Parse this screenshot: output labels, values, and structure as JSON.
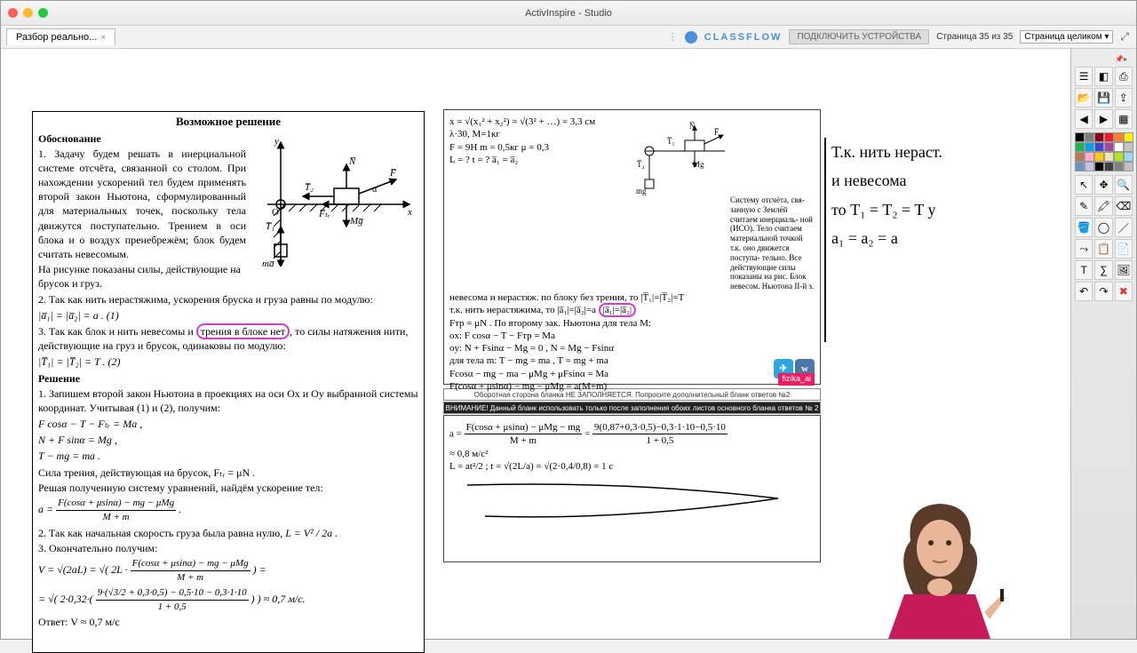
{
  "app": {
    "title": "ActivInspire - Studio"
  },
  "tab": {
    "label": "Разбор реально...",
    "close": "×"
  },
  "header": {
    "classflow": "CLASSFLOW",
    "connect_btn": "ПОДКЛЮЧИТЬ УСТРОЙСТВА",
    "page_info": "Страница 35 из 35",
    "zoom": "Страница целиком",
    "expand": "⤢"
  },
  "check_mark": "✔",
  "solution": {
    "title": "Возможное решение",
    "h_just": "Обоснование",
    "p1": "1. Задачу будем решать в инерциальной системе отсчёта, связанной со столом. При нахождении ускорений тел будем применять второй закон Ньютона, сформулированный для материальных точек, поскольку тела движутся поступательно. Трением в оси блока и о воздух пренебрежём; блок будем считать невесомым.",
    "p2": "На рисунке показаны силы, действующие на брусок и груз.",
    "p3a": "2. Так как нить нерастяжима, ускорения бруска и груза равны по модулю:",
    "eq1": "|a̅₁| = |a̅₂| = a .                            (1)",
    "p4a": "3. Так как блок и нить невесомы и ",
    "p4_circ": "трения в блоке нет",
    "p4b": ", то силы натяжения нити, действующие на груз и брусок, одинаковы по модулю:",
    "eq2": "|T̅₁| = |T̅₂| = T .                            (2)",
    "h_sol": "Решение",
    "s1": "1. Запишем второй закон Ньютона в проекциях на оси Ox и Oy выбранной системы координат. Учитывая (1) и (2), получим:",
    "seq1": "F cosα − T − Fₜᵣ = Ma ,",
    "seq2": "N + F sinα = Mg ,",
    "seq3": "T − mg = ma .",
    "s2": "Сила трения, действующая на брусок,  Fₜᵣ = μN .",
    "s3": "Решая полученную систему уравнений, найдём ускорение тел:",
    "seq4_num": "F(cosα + μsinα) − mg − μMg",
    "seq4_den": "M + m",
    "s4": "2. Так как начальная скорость груза была равна нулю, ",
    "seq5": "L = V² / 2a .",
    "s5": "3. Окончательно получим:",
    "seq6a": "V = √(2aL) = √( 2L · ",
    "seq6_num": "F(cosα + μsinα) − mg − μMg",
    "seq6_den": "M + m",
    "seq6b": " ) =",
    "seq7_num": "9·(√3/2 + 0,3·0,5) − 0,5·10 − 0,3·1·10",
    "seq7_den": "1 + 0,5",
    "seq7a": "= √( 2·0,32·( ",
    "seq7b": " ) ) ≈ 0,7 м/с.",
    "ans": "Ответ:  V ≈ 0,7 м/с"
  },
  "diagram": {
    "labels": {
      "y": "y",
      "x": "x",
      "O": "O",
      "N": "N̅",
      "F": "F̅",
      "T1": "T̅₁",
      "T2": "T̅₂",
      "Ftr": "F̅ₜᵣ",
      "Mg": "Mg̅",
      "mg": "mg̅",
      "alpha": "α"
    }
  },
  "hand_top": {
    "l1": "x = √(x₁² + x₂²) = √(3² + …) = 3,3 см",
    "l2": "λ·30, M=1кг",
    "l3": "F = 9H   m = 0,5кг   μ = 0,3",
    "l4": "L = ?   t = ?   a̅₁ = a̅₂",
    "l5": "Систему отсчёта, свя- занную с Землёй считаем инерциаль- ной (ИСО). Тело считаем материальной точкой т.к. оно движется поступа- тельно. Все действующие силы показаны на рис. Блок невесом. Ньютона II-й з.",
    "l6": "невесома и нерастяж. по блоку без трения, то |T̅₁|=|T̅₂|=T",
    "l6b": "т.к. нить нерастяжима, то |a̅₁|=|a̅₂|=a",
    "l7": "Fтр = μN .     По второму зак. Ньютона для тела M:",
    "l8": "ox:   F cosα − T − Fтр = Ma",
    "l9": "oy:   N + Fsinα − Mg = 0  ,  N = Mg − Fsinα",
    "l10": "для тела m:   T − mg = ma ,   T = mg + ma",
    "l11": "Fcosα − mg − ma − μMg + μFsinα = Ma",
    "l12": "F(cosα + μsinα) − mg − μMg = a(M+m)",
    "fizika": "fizika_ai"
  },
  "banners": {
    "up": "Оборотная сторона бланка НЕ ЗАПОЛНЯЕТСЯ. Попросите дополнительный бланк ответов №2",
    "dn": "ВНИМАНИЕ!   Данный бланк использовать только после заполнения обоих листов основного бланка ответов № 2"
  },
  "hand_bot": {
    "l1": "a = ",
    "l1num": "F(cosα + μsinα) − μMg − mg",
    "l1den": "M + m",
    "l1eq": " = ",
    "l1num2": "9(0,87+0,3·0,5)−0,3·1·10−0,5·10",
    "l1den2": "1 + 0,5",
    "l2": "≈ 0,8 м/с²",
    "l3": "L = at²/2 ;  t = √(2L/a) = √(2·0,4/0,8) = 1 c"
  },
  "right_notes": {
    "l1": "Т.к. нить нераст.",
    "l2": "и невесома",
    "l3": "то   T₁ = T₂ = T  у",
    "l4": "a₁ = a₂ = a"
  },
  "palette_colors": [
    "#000000",
    "#7f7f7f",
    "#880015",
    "#ed1c24",
    "#ff7f27",
    "#fff200",
    "#22b14c",
    "#00a2e8",
    "#3f48cc",
    "#a349a4",
    "#ffffff",
    "#c3c3c3",
    "#b97a57",
    "#ffaec9",
    "#ffc90e",
    "#efe4b0",
    "#b5e61d",
    "#99d9ea",
    "#7092be",
    "#c8bfe7",
    "#000000",
    "#404040",
    "#808080",
    "#c0c0c0"
  ],
  "tool_icons": [
    "⬚",
    "◧",
    "⎙",
    "🗁",
    "↶",
    "↷",
    "⟲",
    "🗑",
    "⬛",
    "▭",
    "◯",
    "△",
    "✎",
    "🖌",
    "🖍",
    "✂",
    "A",
    "T",
    "📏",
    "📐",
    "⚙",
    "❌",
    "↔",
    "⬌"
  ]
}
